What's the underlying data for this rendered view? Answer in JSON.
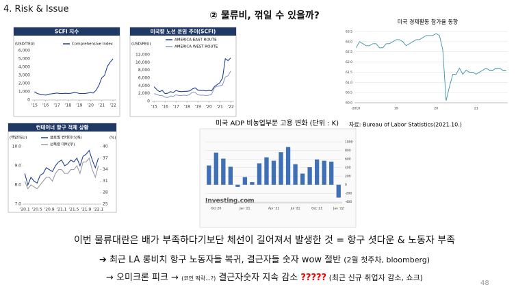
{
  "header": {
    "section": "4. Risk & Issue",
    "title": "② 물류비, 꺾일 수 있을까?"
  },
  "body": [
    [
      "이번 물류대란은 배가 부족하다기보단 체선이 길어져서 발생한 것 = 항구 셧다운 & 노동자 부족"
    ],
    [
      "➔ 최근 LA 롱비치 항구 노동자들 복귀, 결근자들 숫자 wow 절반 ",
      "(2월 첫주차, bloomberg)"
    ],
    [
      "→ 오미크론 피크 → ",
      "(코인 떡락...?)",
      " 결근자숫자 지속 감소 ",
      "?????",
      " (최근 신규 취업자 감소, 쇼크)"
    ]
  ],
  "page_number": "48",
  "chart_data": [
    {
      "type": "line",
      "title": "SCFI 지수",
      "y_label": "(USD/TEU)",
      "x": [
        2015,
        2015.25,
        2015.5,
        2015.75,
        2016,
        2016.25,
        2016.5,
        2016.75,
        2017,
        2017.25,
        2017.5,
        2017.75,
        2018,
        2018.25,
        2018.5,
        2018.75,
        2019,
        2019.25,
        2019.5,
        2019.75,
        2020,
        2020.25,
        2020.5,
        2020.75,
        2021,
        2021.25,
        2021.5,
        2021.75,
        2022
      ],
      "series": [
        {
          "name": "Comprehensive Index",
          "color": "#1f3f8f",
          "values": [
            1000,
            800,
            700,
            650,
            600,
            700,
            750,
            800,
            850,
            800,
            780,
            820,
            800,
            820,
            900,
            880,
            800,
            790,
            780,
            850,
            900,
            850,
            1200,
            1800,
            2700,
            3000,
            4100,
            4600,
            5000
          ]
        }
      ],
      "xlim": [
        2014.8,
        2022.3
      ],
      "xticks": [
        {
          "value": 2015,
          "label": "'15"
        },
        {
          "value": 2016,
          "label": "'16"
        },
        {
          "value": 2017,
          "label": "'17"
        },
        {
          "value": 2018,
          "label": "'18"
        },
        {
          "value": 2019,
          "label": "'19"
        },
        {
          "value": 2020,
          "label": "'20"
        },
        {
          "value": 2021,
          "label": "'21"
        },
        {
          "value": 2022,
          "label": "'22"
        }
      ],
      "ylim": [
        0,
        6000
      ],
      "yticks": [
        0,
        {
          "value": 1000,
          "label": "1,000"
        },
        {
          "value": 2000,
          "label": "2,000"
        },
        {
          "value": 3000,
          "label": "3,000"
        },
        {
          "value": 4000,
          "label": "4,000"
        },
        {
          "value": 5000,
          "label": "5,000"
        },
        {
          "value": 6000,
          "label": "6,000"
        }
      ]
    },
    {
      "type": "line",
      "title": "미국향 노선 운임 추이(SCFI)",
      "y_label": "(USD/FEU)",
      "x": [
        2015,
        2015.25,
        2015.5,
        2015.75,
        2016,
        2016.25,
        2016.5,
        2016.75,
        2017,
        2017.25,
        2017.5,
        2017.75,
        2018,
        2018.25,
        2018.5,
        2018.75,
        2019,
        2019.25,
        2019.5,
        2019.75,
        2020,
        2020.25,
        2020.5,
        2020.75,
        2021,
        2021.25,
        2021.5,
        2021.75,
        2022
      ],
      "series": [
        {
          "name": "AMERICA EAST ROUTE",
          "color": "#1f3f8f",
          "values": [
            3800,
            3000,
            2500,
            2800,
            2000,
            2100,
            2500,
            2300,
            2800,
            2600,
            2500,
            2600,
            2600,
            2700,
            3200,
            3500,
            2900,
            2800,
            2800,
            2700,
            2800,
            2700,
            3800,
            4300,
            4800,
            6000,
            11000,
            10500,
            11200
          ]
        },
        {
          "name": "AMERICA WEST ROUTE",
          "color": "#8c9cc8",
          "values": [
            2000,
            1800,
            1500,
            1500,
            1100,
            1000,
            1400,
            1300,
            1700,
            1500,
            1500,
            1600,
            1500,
            1800,
            2400,
            2300,
            1700,
            1600,
            1600,
            1500,
            1600,
            1800,
            3500,
            3900,
            4000,
            4200,
            6300,
            6600,
            7800
          ]
        }
      ],
      "xlim": [
        2014.8,
        2022.3
      ],
      "xticks": [
        {
          "value": 2015,
          "label": "'15"
        },
        {
          "value": 2016,
          "label": "'16"
        },
        {
          "value": 2017,
          "label": "'17"
        },
        {
          "value": 2018,
          "label": "'18"
        },
        {
          "value": 2019,
          "label": "'19"
        },
        {
          "value": 2020,
          "label": "'20"
        },
        {
          "value": 2021,
          "label": "'21"
        },
        {
          "value": 2022,
          "label": "'22"
        }
      ],
      "ylim": [
        0,
        12000
      ],
      "yticks": [
        0,
        {
          "value": 2000,
          "label": "2,000"
        },
        {
          "value": 4000,
          "label": "4,000"
        },
        {
          "value": 6000,
          "label": "6,000"
        },
        {
          "value": 8000,
          "label": "8,000"
        },
        {
          "value": 10000,
          "label": "10,000"
        },
        {
          "value": 12000,
          "label": "12,000"
        }
      ]
    },
    {
      "type": "line",
      "title": "컨테이너 항구 적체 상황",
      "y_label": "(백만TEU)",
      "y2_label": "(%)",
      "categories": [
        "'20.1",
        null,
        null,
        null,
        "'20.5",
        null,
        null,
        null,
        "'20.9",
        null,
        null,
        null,
        "'21.1",
        null,
        null,
        null,
        "'21.5",
        null,
        null,
        null,
        "'21.9",
        null,
        null,
        null,
        "'22.1"
      ],
      "series": [
        {
          "name": "글로벌 컨테이너(좌)",
          "color": "#1f3f8f",
          "values": [
            8.6,
            8.0,
            8.4,
            8.2,
            8.1,
            8.5,
            8.6,
            8.9,
            8.8,
            8.7,
            9.0,
            9.2,
            9.3,
            9.0,
            9.1,
            9.3,
            9.2,
            9.4,
            9.0,
            9.5,
            9.6,
            9.8,
            9.3,
            8.9,
            9.4
          ]
        },
        {
          "name": "선복량 대비(우)",
          "color": "#9a9aa8",
          "axis": "y2",
          "values": [
            31,
            29,
            30,
            29.5,
            29,
            30,
            31,
            32,
            32,
            31,
            33,
            34,
            34,
            33,
            33,
            34,
            34,
            35,
            33,
            36,
            36,
            37,
            34,
            32,
            35
          ]
        }
      ],
      "ylim": [
        7,
        10
      ],
      "yticks": [
        {
          "value": 7,
          "label": "7.0"
        },
        {
          "value": 8,
          "label": "8.0"
        },
        {
          "value": 9,
          "label": "9.0"
        },
        {
          "value": 10,
          "label": "10.0"
        }
      ],
      "y2lim": [
        25,
        40
      ],
      "y2ticks": [
        25,
        28,
        31,
        34,
        37,
        40
      ]
    },
    {
      "type": "line",
      "title": "미국 경제활동 참가율 동향",
      "source": "자료: Bureau of Labor Statistics(2021.10.)",
      "categories": [
        "2018",
        null,
        null,
        null,
        null,
        null,
        null,
        null,
        null,
        null,
        null,
        null,
        "19",
        null,
        null,
        null,
        null,
        null,
        null,
        null,
        null,
        null,
        null,
        null,
        "20",
        null,
        null,
        null,
        null,
        null,
        null,
        null,
        null,
        null,
        null,
        null,
        "21",
        null,
        null,
        null,
        null,
        null,
        null,
        null,
        null,
        null
      ],
      "series": [
        {
          "name": null,
          "color": "#3a8fa8",
          "values": [
            62.7,
            63.0,
            62.9,
            62.8,
            62.8,
            62.9,
            62.9,
            62.7,
            62.7,
            62.9,
            62.9,
            63.0,
            63.1,
            63.1,
            63.0,
            62.8,
            62.9,
            63.0,
            63.1,
            63.1,
            63.2,
            63.3,
            63.3,
            63.3,
            63.4,
            63.3,
            62.6,
            60.1,
            60.8,
            61.4,
            61.4,
            61.7,
            61.4,
            61.6,
            61.5,
            61.5,
            61.4,
            61.5,
            61.6,
            61.7,
            61.6,
            61.6,
            61.7,
            61.7,
            61.6,
            61.6
          ]
        }
      ],
      "ylim": [
        60,
        63.5
      ],
      "yticks": [
        {
          "value": 60,
          "label": "60.0"
        },
        60.5,
        {
          "value": 61,
          "label": "61.0"
        },
        61.5,
        {
          "value": 62,
          "label": "62.0"
        },
        62.5,
        {
          "value": 63,
          "label": "63.0"
        },
        63.5
      ],
      "grid": true
    },
    {
      "type": "bar",
      "title": "미국 ADP 비농업부문 고용 변화 (단위 : K)",
      "watermark": "Investing.com",
      "categories": [
        null,
        "Oct 20",
        null,
        null,
        null,
        "Jan '21",
        null,
        null,
        null,
        "Apr '21",
        null,
        null,
        "Jul '21",
        null,
        null,
        "Oct '21",
        null,
        null,
        "Jan '22"
      ],
      "values": [
        450,
        750,
        610,
        420,
        -50,
        180,
        60,
        500,
        640,
        560,
        760,
        880,
        480,
        260,
        410,
        590,
        560,
        540,
        -300
      ],
      "color": "#3f6fb5",
      "ylim": [
        -420,
        1050
      ],
      "yticks": [
        -400,
        -200,
        0,
        200,
        400,
        600,
        800,
        1000
      ],
      "grid": true
    }
  ]
}
